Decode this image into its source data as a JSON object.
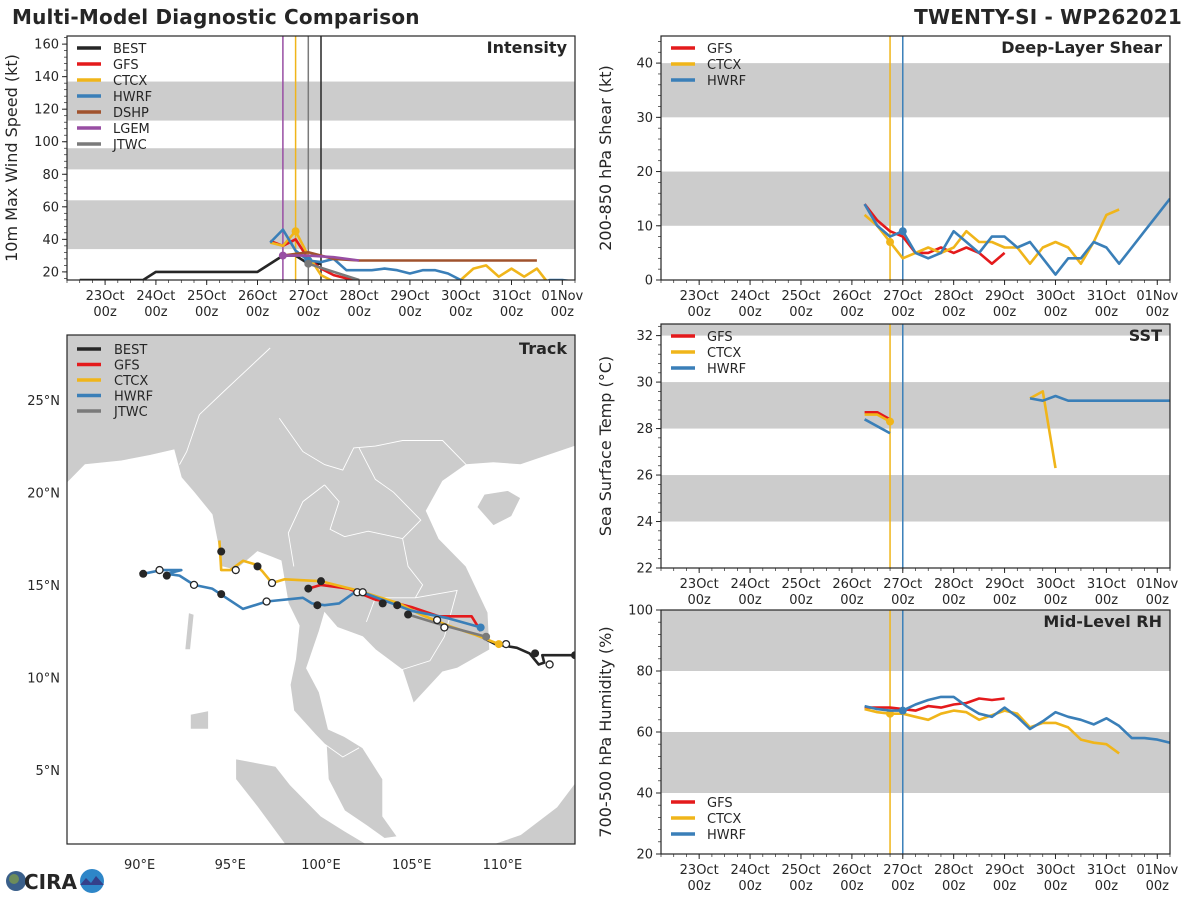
{
  "header": {
    "title": "Multi-Model Diagnostic Comparison",
    "storm": "TWENTY-SI - WP262021"
  },
  "logo": {
    "text": "CIRA",
    "icon": "cira-logo-icon"
  },
  "colors": {
    "BEST": "#262626",
    "GFS": "#e41a1c",
    "CTCX": "#f0b51a",
    "HWRF": "#3a7fb8",
    "DSHP": "#a0522d",
    "LGEM": "#984ea3",
    "JTWC": "#7a7a7a",
    "band": "#cccccc",
    "land": "#cccccc",
    "coast": "#ffffff"
  },
  "time_axis": {
    "ticks": [
      {
        "day": 0,
        "label1": "23Oct",
        "label2": "00z"
      },
      {
        "day": 1,
        "label1": "24Oct",
        "label2": "00z"
      },
      {
        "day": 2,
        "label1": "25Oct",
        "label2": "00z"
      },
      {
        "day": 3,
        "label1": "26Oct",
        "label2": "00z"
      },
      {
        "day": 4,
        "label1": "27Oct",
        "label2": "00z"
      },
      {
        "day": 5,
        "label1": "28Oct",
        "label2": "00z"
      },
      {
        "day": 6,
        "label1": "29Oct",
        "label2": "00z"
      },
      {
        "day": 7,
        "label1": "30Oct",
        "label2": "00z"
      },
      {
        "day": 8,
        "label1": "31Oct",
        "label2": "00z"
      },
      {
        "day": 9,
        "label1": "01Nov",
        "label2": "00z"
      }
    ],
    "range_days": [
      -0.75,
      9.25
    ]
  },
  "chart_data": [
    {
      "id": "intensity",
      "type": "line",
      "title": "Intensity",
      "ylabel": "10m Max Wind Speed (kt)",
      "xlabel": "",
      "ylim": [
        15,
        165
      ],
      "yticks": [
        20,
        40,
        60,
        80,
        100,
        120,
        140,
        160
      ],
      "bands": [
        [
          34,
          64
        ],
        [
          83,
          96
        ],
        [
          113,
          137
        ]
      ],
      "legend": [
        "BEST",
        "GFS",
        "CTCX",
        "HWRF",
        "DSHP",
        "LGEM",
        "JTWC"
      ],
      "legend_position": "top-left",
      "vlines": [
        {
          "model": "LGEM",
          "day": 3.5
        },
        {
          "model": "CTCX",
          "day": 3.75
        },
        {
          "model": "JTWC",
          "day": 4.0
        },
        {
          "model": "BEST",
          "day": 4.25
        }
      ],
      "series": [
        {
          "name": "BEST",
          "x": [
            -0.5,
            0.75,
            1.0,
            2.0,
            3.0,
            3.5,
            3.75,
            4.0,
            4.25
          ],
          "y": [
            15,
            15,
            20,
            20,
            20,
            30,
            30,
            25,
            25
          ],
          "marker_day": null
        },
        {
          "name": "GFS",
          "x": [
            3.25,
            3.5,
            3.75,
            4.0,
            4.25,
            4.5,
            4.75,
            5.0
          ],
          "y": [
            39,
            36,
            40,
            28,
            22,
            18,
            16,
            15
          ],
          "marker_day": null
        },
        {
          "name": "CTCX",
          "x": [
            3.25,
            3.5,
            3.75,
            4.0,
            4.25,
            4.5,
            5.0,
            5.5,
            6.0,
            6.5,
            7.0,
            7.25,
            7.5,
            7.75,
            8.0,
            8.25,
            8.5,
            8.75,
            9.0,
            9.25
          ],
          "y": [
            38,
            36,
            45,
            30,
            18,
            14,
            13,
            13,
            13,
            13,
            15,
            22,
            24,
            17,
            22,
            17,
            22,
            12,
            12,
            12
          ],
          "marker_day": 3.75
        },
        {
          "name": "HWRF",
          "x": [
            3.25,
            3.5,
            3.75,
            4.0,
            4.25,
            4.5,
            4.75,
            5.0,
            5.25,
            5.5,
            5.75,
            6.0,
            6.25,
            6.5,
            6.75,
            7.0,
            7.25,
            7.5,
            7.75,
            8.0,
            8.25,
            8.5,
            8.75,
            9.0,
            9.25
          ],
          "y": [
            38,
            46,
            33,
            27,
            26,
            28,
            21,
            21,
            21,
            22,
            21,
            19,
            21,
            21,
            19,
            15,
            12,
            11,
            11,
            11,
            11,
            11,
            15,
            15,
            14
          ],
          "marker_day": 4.0
        },
        {
          "name": "DSHP",
          "x": [
            3.5,
            4.0,
            4.5,
            5.0,
            5.5,
            6.0,
            6.5,
            7.0,
            7.5,
            8.0,
            8.5
          ],
          "y": [
            30,
            32,
            28,
            27,
            27,
            27,
            27,
            27,
            27,
            27,
            27
          ],
          "marker_day": null
        },
        {
          "name": "LGEM",
          "x": [
            3.5,
            4.0,
            4.5,
            5.0
          ],
          "y": [
            30,
            30,
            29,
            27
          ],
          "marker_day": 3.5
        },
        {
          "name": "JTWC",
          "x": [
            4.0,
            4.5,
            5.0
          ],
          "y": [
            25,
            20,
            15
          ],
          "marker_day": 4.0
        }
      ]
    },
    {
      "id": "shear",
      "type": "line",
      "title": "Deep-Layer Shear",
      "ylabel": "200-850 hPa Shear (kt)",
      "xlabel": "",
      "ylim": [
        0,
        45
      ],
      "yticks": [
        0,
        10,
        20,
        30,
        40
      ],
      "bands": [
        [
          10,
          20
        ],
        [
          30,
          40
        ]
      ],
      "legend": [
        "GFS",
        "CTCX",
        "HWRF"
      ],
      "legend_position": "top-left",
      "vlines": [
        {
          "model": "CTCX",
          "day": 3.75
        },
        {
          "model": "HWRF",
          "day": 4.0
        }
      ],
      "series": [
        {
          "name": "GFS",
          "x": [
            3.25,
            3.5,
            3.75,
            4.0,
            4.25,
            4.5,
            4.75,
            5.0,
            5.25,
            5.5,
            5.75,
            6.0
          ],
          "y": [
            14,
            11,
            9,
            8,
            5,
            5,
            6,
            5,
            6,
            5,
            3,
            5
          ],
          "marker_day": null
        },
        {
          "name": "CTCX",
          "x": [
            3.25,
            3.5,
            3.75,
            4.0,
            4.25,
            4.5,
            4.75,
            5.0,
            5.25,
            5.5,
            5.75,
            6.0,
            6.25,
            6.5,
            6.75,
            7.0,
            7.25,
            7.5,
            7.75,
            8.0,
            8.25
          ],
          "y": [
            12,
            10,
            7,
            4,
            5,
            6,
            5,
            6,
            9,
            7,
            7,
            6,
            6,
            3,
            6,
            7,
            6,
            3,
            7,
            12,
            13
          ],
          "marker_day": 3.75
        },
        {
          "name": "HWRF",
          "x": [
            3.25,
            3.5,
            3.75,
            4.0,
            4.25,
            4.5,
            4.75,
            5.0,
            5.25,
            5.5,
            5.75,
            6.0,
            6.25,
            6.5,
            6.75,
            7.0,
            7.25,
            7.5,
            7.75,
            8.0,
            8.25,
            8.5,
            8.75,
            9.0,
            9.25
          ],
          "y": [
            14,
            10,
            8,
            9,
            5,
            4,
            5,
            9,
            7,
            5,
            8,
            8,
            6,
            7,
            4,
            1,
            4,
            4,
            7,
            6,
            3,
            6,
            9,
            12,
            15
          ],
          "marker_day": 4.0
        }
      ]
    },
    {
      "id": "sst",
      "type": "line",
      "title": "SST",
      "ylabel": "Sea Surface Temp (°C)",
      "xlabel": "",
      "ylim": [
        22,
        32.5
      ],
      "yticks": [
        22,
        24,
        26,
        28,
        30,
        32
      ],
      "bands": [
        [
          24,
          26
        ],
        [
          28,
          30
        ],
        [
          32,
          33
        ]
      ],
      "legend": [
        "GFS",
        "CTCX",
        "HWRF"
      ],
      "legend_position": "top-left",
      "vlines": [
        {
          "model": "CTCX",
          "day": 3.75
        },
        {
          "model": "HWRF",
          "day": 4.0
        }
      ],
      "series": [
        {
          "name": "GFS",
          "x": [
            3.25,
            3.5,
            3.75
          ],
          "y": [
            28.7,
            28.7,
            28.4
          ],
          "marker_day": null
        },
        {
          "name": "CTCX",
          "x": [
            3.25,
            3.5,
            3.75,
            null,
            6.5,
            6.75,
            7.0
          ],
          "y": [
            28.6,
            28.6,
            28.3,
            null,
            29.3,
            29.6,
            26.3
          ],
          "marker_day": 3.75
        },
        {
          "name": "HWRF",
          "x": [
            3.25,
            3.75,
            null,
            6.5,
            6.75,
            7.0,
            7.25,
            7.5,
            8.0,
            8.5,
            9.0,
            9.25
          ],
          "y": [
            28.4,
            27.8,
            null,
            29.3,
            29.2,
            29.4,
            29.2,
            29.2,
            29.2,
            29.2,
            29.2,
            29.2
          ],
          "marker_day": null
        }
      ]
    },
    {
      "id": "rh",
      "type": "line",
      "title": "Mid-Level RH",
      "ylabel": "700-500 hPa Humidity (%)",
      "xlabel": "",
      "ylim": [
        20,
        100
      ],
      "yticks": [
        20,
        40,
        60,
        80,
        100
      ],
      "bands": [
        [
          40,
          60
        ],
        [
          80,
          100
        ]
      ],
      "legend": [
        "GFS",
        "CTCX",
        "HWRF"
      ],
      "legend_position": "bottom-left",
      "vlines": [
        {
          "model": "CTCX",
          "day": 3.75
        },
        {
          "model": "HWRF",
          "day": 4.0
        }
      ],
      "series": [
        {
          "name": "GFS",
          "x": [
            3.25,
            3.5,
            3.75,
            4.0,
            4.25,
            4.5,
            4.75,
            5.0,
            5.25,
            5.5,
            5.75,
            6.0
          ],
          "y": [
            68,
            68,
            68,
            67.5,
            67,
            68.5,
            68,
            69,
            69.5,
            71,
            70.5,
            71
          ],
          "marker_day": null
        },
        {
          "name": "CTCX",
          "x": [
            3.25,
            3.5,
            3.75,
            4.0,
            4.25,
            4.5,
            4.75,
            5.0,
            5.25,
            5.5,
            5.75,
            6.0,
            6.25,
            6.5,
            6.75,
            7.0,
            7.25,
            7.5,
            7.75,
            8.0,
            8.25
          ],
          "y": [
            67.5,
            66.5,
            66,
            66,
            65,
            64,
            66,
            67,
            66.5,
            64,
            65.5,
            67,
            66,
            61.5,
            63,
            63,
            61.5,
            57.5,
            56.5,
            56,
            53
          ],
          "marker_day": 3.75
        },
        {
          "name": "HWRF",
          "x": [
            3.25,
            3.5,
            3.75,
            4.0,
            4.25,
            4.5,
            4.75,
            5.0,
            5.25,
            5.5,
            5.75,
            6.0,
            6.25,
            6.5,
            6.75,
            7.0,
            7.25,
            7.5,
            7.75,
            8.0,
            8.25,
            8.5,
            8.75,
            9.0,
            9.25
          ],
          "y": [
            68.5,
            67.5,
            67,
            67,
            69,
            70.5,
            71.5,
            71.5,
            68.5,
            66,
            65,
            68,
            65,
            61,
            63.5,
            66.5,
            65,
            64,
            62.5,
            64.5,
            62,
            58,
            58,
            57.5,
            56.5
          ],
          "marker_day": 4.0
        }
      ]
    },
    {
      "id": "track",
      "type": "scatter",
      "title": "Track",
      "xlabel": "",
      "ylabel": "",
      "xlim_lon": [
        86,
        114
      ],
      "ylim_lat": [
        1,
        28.5
      ],
      "xticks": [
        {
          "v": 90,
          "label": "90°E"
        },
        {
          "v": 95,
          "label": "95°E"
        },
        {
          "v": 100,
          "label": "100°E"
        },
        {
          "v": 105,
          "label": "105°E"
        },
        {
          "v": 110,
          "label": "110°E"
        }
      ],
      "yticks": [
        {
          "v": 5,
          "label": "5°N"
        },
        {
          "v": 10,
          "label": "10°N"
        },
        {
          "v": 15,
          "label": "15°N"
        },
        {
          "v": 20,
          "label": "20°N"
        },
        {
          "v": 25,
          "label": "25°N"
        }
      ],
      "legend": [
        "BEST",
        "GFS",
        "CTCX",
        "HWRF",
        "JTWC"
      ],
      "legend_position": "top-left",
      "series": [
        {
          "name": "BEST",
          "lon": [
            114,
            112.2,
            112.3,
            112.0,
            111.5,
            110.8,
            110.2,
            109.6,
            109.0
          ],
          "lat": [
            11.2,
            11.2,
            10.8,
            10.7,
            11.3,
            11.6,
            11.7,
            11.8,
            12.1
          ],
          "filled": [
            [
              114,
              11.2
            ],
            [
              111.8,
              11.3
            ]
          ],
          "open": [
            [
              112.6,
              10.7
            ],
            [
              110.2,
              11.8
            ]
          ]
        },
        {
          "name": "GFS",
          "lon": [
            108.8,
            108.3,
            107.5,
            106.5,
            105.0,
            104.2,
            103.0,
            101.5,
            100.0,
            99.3
          ],
          "lat": [
            12.5,
            13.3,
            13.3,
            13.3,
            13.8,
            14.0,
            14.2,
            14.8,
            15.0,
            14.8
          ],
          "filled": [
            [
              99.3,
              14.8
            ],
            [
              104.2,
              13.9
            ],
            [
              103.4,
              14.0
            ]
          ],
          "open": []
        },
        {
          "name": "CTCX",
          "lon": [
            109.8,
            108.5,
            107.0,
            105.5,
            104.3,
            103.0,
            102.0,
            100.0,
            98.0,
            97.3,
            96.8,
            96.4,
            95.7,
            95.0,
            94.5,
            94.4
          ],
          "lat": [
            11.8,
            12.3,
            12.8,
            13.4,
            14.0,
            14.4,
            14.7,
            15.2,
            15.3,
            15.1,
            15.7,
            16.1,
            16.3,
            15.8,
            15.8,
            17.4
          ],
          "filled": [
            [
              100.0,
              15.2
            ],
            [
              96.5,
              16.0
            ],
            [
              94.5,
              16.8
            ],
            [
              109.8,
              11.8
            ]
          ],
          "open": [
            [
              97.3,
              15.1
            ],
            [
              95.3,
              15.8
            ],
            [
              102.0,
              14.6
            ]
          ]
        },
        {
          "name": "HWRF",
          "lon": [
            108.8,
            107.0,
            105.0,
            102.0,
            101.0,
            100.2,
            99.5,
            99.0,
            97.0,
            95.7,
            94.0,
            93.0,
            92.2,
            91.5,
            92.3,
            91.2,
            90.2
          ],
          "lat": [
            12.7,
            13.2,
            13.6,
            14.7,
            14.0,
            13.9,
            14.0,
            14.3,
            14.1,
            13.7,
            14.8,
            15.0,
            15.5,
            15.6,
            15.8,
            15.8,
            15.6
          ],
          "filled": [
            [
              108.8,
              12.7
            ],
            [
              99.8,
              13.9
            ],
            [
              94.5,
              14.5
            ],
            [
              91.5,
              15.5
            ],
            [
              90.2,
              15.6
            ]
          ],
          "open": [
            [
              102.3,
              14.6
            ],
            [
              106.4,
              13.1
            ],
            [
              97.0,
              14.1
            ],
            [
              93.0,
              15.0
            ],
            [
              91.1,
              15.8
            ]
          ]
        },
        {
          "name": "JTWC",
          "lon": [
            109.1,
            106.8,
            104.8
          ],
          "lat": [
            12.2,
            12.8,
            13.4
          ],
          "filled": [
            [
              104.8,
              13.4
            ],
            [
              109.1,
              12.2
            ]
          ],
          "open": [
            [
              106.8,
              12.7
            ]
          ]
        }
      ]
    }
  ]
}
